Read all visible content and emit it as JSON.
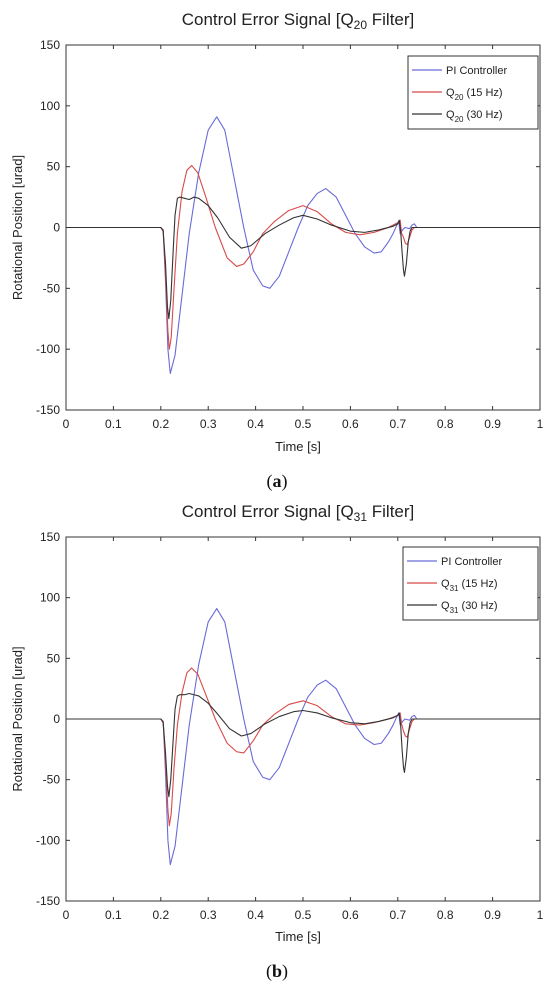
{
  "chart_data": [
    {
      "type": "line",
      "title": "Control Error Signal [Q20 Filter]",
      "title_parts": {
        "pre": "Control Error Signal [Q",
        "sub": "20",
        "post": " Filter]"
      },
      "xlabel": "Time [s]",
      "ylabel": "Rotational Position [urad]",
      "xlim": [
        0,
        1
      ],
      "ylim": [
        -150,
        150
      ],
      "xticks": [
        "0",
        "0.1",
        "0.2",
        "0.3",
        "0.4",
        "0.5",
        "0.6",
        "0.7",
        "0.8",
        "0.9",
        "1"
      ],
      "yticks": [
        "150",
        "100",
        "50",
        "0",
        "-50",
        "-100",
        "-150"
      ],
      "grid": false,
      "legend_position": "top-right",
      "caption": {
        "open": "(",
        "letter": "a",
        "close": ")"
      },
      "series": [
        {
          "name": "PI Controller",
          "label_parts": {
            "pre": "PI Controller",
            "sub": "",
            "post": ""
          },
          "color": "#6a6ad8",
          "points": [
            [
              0,
              0
            ],
            [
              0.2,
              0
            ],
            [
              0.205,
              -2
            ],
            [
              0.21,
              -45
            ],
            [
              0.215,
              -100
            ],
            [
              0.22,
              -120
            ],
            [
              0.23,
              -105
            ],
            [
              0.245,
              -55
            ],
            [
              0.26,
              -5
            ],
            [
              0.28,
              45
            ],
            [
              0.3,
              80
            ],
            [
              0.318,
              91
            ],
            [
              0.335,
              80
            ],
            [
              0.355,
              40
            ],
            [
              0.375,
              0
            ],
            [
              0.395,
              -35
            ],
            [
              0.415,
              -48
            ],
            [
              0.43,
              -50
            ],
            [
              0.45,
              -40
            ],
            [
              0.47,
              -20
            ],
            [
              0.49,
              0
            ],
            [
              0.51,
              18
            ],
            [
              0.53,
              28
            ],
            [
              0.548,
              32
            ],
            [
              0.57,
              25
            ],
            [
              0.59,
              10
            ],
            [
              0.61,
              -5
            ],
            [
              0.63,
              -16
            ],
            [
              0.65,
              -21
            ],
            [
              0.665,
              -20
            ],
            [
              0.68,
              -12
            ],
            [
              0.69,
              -5
            ],
            [
              0.698,
              2
            ],
            [
              0.702,
              5
            ],
            [
              0.705,
              -5
            ],
            [
              0.71,
              -2
            ],
            [
              0.715,
              0
            ],
            [
              0.725,
              -1
            ],
            [
              0.73,
              2
            ],
            [
              0.735,
              3
            ],
            [
              0.74,
              0
            ],
            [
              0.75,
              0
            ],
            [
              1,
              0
            ]
          ]
        },
        {
          "name": "Q20 (15 Hz)",
          "label_parts": {
            "pre": "Q",
            "sub": "20",
            "post": " (15 Hz)"
          },
          "color": "#d84a4a",
          "points": [
            [
              0,
              0
            ],
            [
              0.2,
              0
            ],
            [
              0.205,
              -2
            ],
            [
              0.21,
              -40
            ],
            [
              0.215,
              -85
            ],
            [
              0.218,
              -100
            ],
            [
              0.222,
              -90
            ],
            [
              0.228,
              -50
            ],
            [
              0.235,
              -5
            ],
            [
              0.245,
              30
            ],
            [
              0.255,
              47
            ],
            [
              0.265,
              51
            ],
            [
              0.278,
              45
            ],
            [
              0.295,
              25
            ],
            [
              0.315,
              0
            ],
            [
              0.34,
              -25
            ],
            [
              0.36,
              -32
            ],
            [
              0.375,
              -30
            ],
            [
              0.395,
              -20
            ],
            [
              0.415,
              -5
            ],
            [
              0.44,
              5
            ],
            [
              0.47,
              14
            ],
            [
              0.5,
              18
            ],
            [
              0.53,
              13
            ],
            [
              0.56,
              3
            ],
            [
              0.59,
              -4
            ],
            [
              0.62,
              -6
            ],
            [
              0.65,
              -4
            ],
            [
              0.68,
              0
            ],
            [
              0.7,
              4
            ],
            [
              0.705,
              6
            ],
            [
              0.708,
              -5
            ],
            [
              0.712,
              -8
            ],
            [
              0.716,
              -13
            ],
            [
              0.72,
              -14
            ],
            [
              0.725,
              -8
            ],
            [
              0.73,
              -2
            ],
            [
              0.735,
              0
            ],
            [
              0.74,
              0
            ],
            [
              1,
              0
            ]
          ]
        },
        {
          "name": "Q20 (30 Hz)",
          "label_parts": {
            "pre": "Q",
            "sub": "20",
            "post": " (30 Hz)"
          },
          "color": "#333333",
          "points": [
            [
              0,
              0
            ],
            [
              0.2,
              0
            ],
            [
              0.205,
              -3
            ],
            [
              0.21,
              -30
            ],
            [
              0.214,
              -65
            ],
            [
              0.217,
              -75
            ],
            [
              0.221,
              -60
            ],
            [
              0.226,
              -20
            ],
            [
              0.23,
              10
            ],
            [
              0.235,
              24
            ],
            [
              0.24,
              25
            ],
            [
              0.25,
              24
            ],
            [
              0.26,
              23
            ],
            [
              0.27,
              25
            ],
            [
              0.28,
              24
            ],
            [
              0.3,
              18
            ],
            [
              0.32,
              8
            ],
            [
              0.345,
              -8
            ],
            [
              0.37,
              -17
            ],
            [
              0.39,
              -15
            ],
            [
              0.42,
              -5
            ],
            [
              0.45,
              2
            ],
            [
              0.48,
              8
            ],
            [
              0.5,
              10
            ],
            [
              0.53,
              7
            ],
            [
              0.56,
              2
            ],
            [
              0.6,
              -3
            ],
            [
              0.63,
              -4
            ],
            [
              0.66,
              -2
            ],
            [
              0.69,
              1
            ],
            [
              0.7,
              3
            ],
            [
              0.703,
              6
            ],
            [
              0.706,
              -3
            ],
            [
              0.709,
              -20
            ],
            [
              0.712,
              -35
            ],
            [
              0.714,
              -40
            ],
            [
              0.718,
              -30
            ],
            [
              0.722,
              -12
            ],
            [
              0.726,
              -3
            ],
            [
              0.73,
              0
            ],
            [
              1,
              0
            ]
          ]
        }
      ]
    },
    {
      "type": "line",
      "title": "Control Error Signal [Q31 Filter]",
      "title_parts": {
        "pre": "Control Error Signal [Q",
        "sub": "31",
        "post": " Filter]"
      },
      "xlabel": "Time [s]",
      "ylabel": "Rotational Position [urad]",
      "xlim": [
        0,
        1
      ],
      "ylim": [
        -150,
        150
      ],
      "xticks": [
        "0",
        "0.1",
        "0.2",
        "0.3",
        "0.4",
        "0.5",
        "0.6",
        "0.7",
        "0.8",
        "0.9",
        "1"
      ],
      "yticks": [
        "150",
        "100",
        "50",
        "0",
        "-50",
        "-100",
        "-150"
      ],
      "grid": false,
      "legend_position": "top-right",
      "caption": {
        "open": "(",
        "letter": "b",
        "close": ")"
      },
      "series": [
        {
          "name": "PI Controller",
          "label_parts": {
            "pre": "PI Controller",
            "sub": "",
            "post": ""
          },
          "color": "#6a6ad8",
          "points": [
            [
              0,
              0
            ],
            [
              0.2,
              0
            ],
            [
              0.205,
              -2
            ],
            [
              0.21,
              -45
            ],
            [
              0.215,
              -100
            ],
            [
              0.22,
              -120
            ],
            [
              0.23,
              -105
            ],
            [
              0.245,
              -55
            ],
            [
              0.26,
              -5
            ],
            [
              0.28,
              45
            ],
            [
              0.3,
              80
            ],
            [
              0.318,
              91
            ],
            [
              0.335,
              80
            ],
            [
              0.355,
              40
            ],
            [
              0.375,
              0
            ],
            [
              0.395,
              -35
            ],
            [
              0.415,
              -48
            ],
            [
              0.43,
              -50
            ],
            [
              0.45,
              -40
            ],
            [
              0.47,
              -20
            ],
            [
              0.49,
              0
            ],
            [
              0.51,
              18
            ],
            [
              0.53,
              28
            ],
            [
              0.548,
              32
            ],
            [
              0.57,
              25
            ],
            [
              0.59,
              10
            ],
            [
              0.61,
              -5
            ],
            [
              0.63,
              -16
            ],
            [
              0.65,
              -21
            ],
            [
              0.665,
              -20
            ],
            [
              0.68,
              -12
            ],
            [
              0.69,
              -5
            ],
            [
              0.698,
              2
            ],
            [
              0.702,
              5
            ],
            [
              0.705,
              -5
            ],
            [
              0.71,
              -2
            ],
            [
              0.715,
              0
            ],
            [
              0.725,
              -1
            ],
            [
              0.73,
              2
            ],
            [
              0.735,
              3
            ],
            [
              0.74,
              0
            ],
            [
              0.75,
              0
            ],
            [
              1,
              0
            ]
          ]
        },
        {
          "name": "Q31 (15 Hz)",
          "label_parts": {
            "pre": "Q",
            "sub": "31",
            "post": " (15 Hz)"
          },
          "color": "#d84a4a",
          "points": [
            [
              0,
              0
            ],
            [
              0.2,
              0
            ],
            [
              0.205,
              -2
            ],
            [
              0.21,
              -35
            ],
            [
              0.215,
              -75
            ],
            [
              0.218,
              -88
            ],
            [
              0.222,
              -78
            ],
            [
              0.228,
              -40
            ],
            [
              0.235,
              -5
            ],
            [
              0.245,
              22
            ],
            [
              0.255,
              38
            ],
            [
              0.265,
              42
            ],
            [
              0.278,
              37
            ],
            [
              0.295,
              20
            ],
            [
              0.315,
              0
            ],
            [
              0.34,
              -20
            ],
            [
              0.36,
              -27
            ],
            [
              0.375,
              -28
            ],
            [
              0.395,
              -18
            ],
            [
              0.415,
              -5
            ],
            [
              0.44,
              4
            ],
            [
              0.47,
              12
            ],
            [
              0.5,
              15
            ],
            [
              0.53,
              11
            ],
            [
              0.56,
              2
            ],
            [
              0.59,
              -4
            ],
            [
              0.62,
              -5
            ],
            [
              0.65,
              -3
            ],
            [
              0.68,
              0
            ],
            [
              0.7,
              3
            ],
            [
              0.705,
              5
            ],
            [
              0.708,
              -4
            ],
            [
              0.712,
              -10
            ],
            [
              0.716,
              -14
            ],
            [
              0.72,
              -15
            ],
            [
              0.725,
              -8
            ],
            [
              0.73,
              -2
            ],
            [
              0.735,
              0
            ],
            [
              0.74,
              0
            ],
            [
              1,
              0
            ]
          ]
        },
        {
          "name": "Q31 (30 Hz)",
          "label_parts": {
            "pre": "Q",
            "sub": "31",
            "post": " (30 Hz)"
          },
          "color": "#333333",
          "points": [
            [
              0,
              0
            ],
            [
              0.2,
              0
            ],
            [
              0.205,
              -3
            ],
            [
              0.21,
              -28
            ],
            [
              0.214,
              -55
            ],
            [
              0.217,
              -64
            ],
            [
              0.221,
              -50
            ],
            [
              0.226,
              -18
            ],
            [
              0.23,
              8
            ],
            [
              0.235,
              19
            ],
            [
              0.24,
              20
            ],
            [
              0.25,
              20
            ],
            [
              0.26,
              21
            ],
            [
              0.27,
              20
            ],
            [
              0.28,
              19
            ],
            [
              0.3,
              13
            ],
            [
              0.32,
              4
            ],
            [
              0.345,
              -8
            ],
            [
              0.37,
              -14
            ],
            [
              0.39,
              -12
            ],
            [
              0.42,
              -4
            ],
            [
              0.45,
              2
            ],
            [
              0.48,
              6
            ],
            [
              0.5,
              7
            ],
            [
              0.53,
              5
            ],
            [
              0.56,
              1
            ],
            [
              0.6,
              -3
            ],
            [
              0.63,
              -4
            ],
            [
              0.66,
              -2
            ],
            [
              0.69,
              1
            ],
            [
              0.7,
              3
            ],
            [
              0.703,
              5
            ],
            [
              0.706,
              -5
            ],
            [
              0.709,
              -25
            ],
            [
              0.712,
              -40
            ],
            [
              0.714,
              -44
            ],
            [
              0.718,
              -32
            ],
            [
              0.722,
              -12
            ],
            [
              0.726,
              -3
            ],
            [
              0.73,
              0
            ],
            [
              1,
              0
            ]
          ]
        }
      ]
    }
  ]
}
